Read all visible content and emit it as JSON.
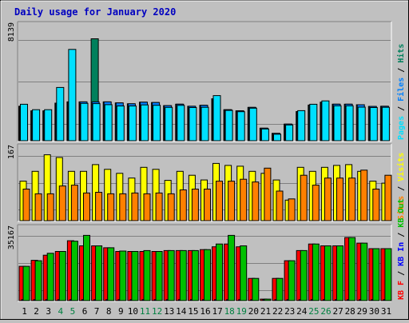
{
  "chart_data": [
    {
      "type": "bar",
      "title": "Daily usage for January 2020",
      "y_max_label": "8139",
      "y_max": 8139,
      "categories": [
        "1",
        "2",
        "3",
        "4",
        "5",
        "6",
        "7",
        "8",
        "9",
        "10",
        "11",
        "12",
        "13",
        "14",
        "15",
        "16",
        "17",
        "18",
        "19",
        "20",
        "21",
        "22",
        "23",
        "24",
        "25",
        "26",
        "27",
        "28",
        "29",
        "30",
        "31"
      ],
      "weekend_days": [
        "4",
        "5",
        "11",
        "12",
        "18",
        "19",
        "25",
        "26"
      ],
      "side_legend": [
        "Hits",
        "Files",
        "Pages"
      ],
      "series": [
        {
          "name": "Hits",
          "color": "#00805c",
          "values": [
            2750,
            2385,
            2385,
            3000,
            3100,
            3100,
            8139,
            3100,
            3020,
            2950,
            3080,
            3050,
            2800,
            2920,
            2750,
            2830,
            3350,
            2480,
            2390,
            2660,
            1000,
            590,
            1330,
            2330,
            2850,
            3080,
            2920,
            2920,
            2870,
            2740,
            2750
          ]
        },
        {
          "name": "Files",
          "color": "#0080ff",
          "values": [
            2750,
            2385,
            2385,
            3000,
            3100,
            3100,
            3100,
            3100,
            3020,
            2950,
            3080,
            3050,
            2800,
            2920,
            2750,
            2830,
            3350,
            2480,
            2390,
            2660,
            1000,
            590,
            1330,
            2330,
            2850,
            3080,
            2920,
            2920,
            2870,
            2740,
            2750
          ]
        },
        {
          "name": "Pages",
          "color": "#00e0ff",
          "values": [
            2910,
            2480,
            2480,
            4250,
            7290,
            2980,
            2960,
            2880,
            2780,
            2780,
            2860,
            2830,
            2660,
            2820,
            2650,
            2670,
            3600,
            2420,
            2320,
            2600,
            940,
            520,
            1260,
            2400,
            2910,
            3180,
            2790,
            2790,
            2680,
            2650,
            2670
          ]
        }
      ]
    },
    {
      "type": "bar",
      "y_max_label": "167",
      "y_max": 167,
      "categories": [
        "1",
        "2",
        "3",
        "4",
        "5",
        "6",
        "7",
        "8",
        "9",
        "10",
        "11",
        "12",
        "13",
        "14",
        "15",
        "16",
        "17",
        "18",
        "19",
        "20",
        "21",
        "22",
        "23",
        "24",
        "25",
        "26",
        "27",
        "28",
        "29",
        "30",
        "31"
      ],
      "side_legend": [
        "Visits",
        "Sites"
      ],
      "series": [
        {
          "name": "Visits",
          "color": "#ffff00",
          "values": [
            100,
            125,
            167,
            160,
            125,
            125,
            142,
            130,
            120,
            108,
            135,
            130,
            102,
            125,
            115,
            103,
            145,
            140,
            138,
            125,
            120,
            103,
            52,
            135,
            125,
            135,
            140,
            142,
            125,
            100,
            95
          ]
        },
        {
          "name": "Sites",
          "color": "#ff8000",
          "values": [
            80,
            68,
            68,
            88,
            90,
            70,
            72,
            68,
            68,
            70,
            68,
            70,
            68,
            78,
            80,
            80,
            100,
            100,
            105,
            98,
            133,
            75,
            55,
            115,
            90,
            108,
            108,
            108,
            128,
            80,
            115
          ]
        }
      ]
    },
    {
      "type": "bar",
      "y_max_label": "35167",
      "y_max": 35167,
      "categories": [
        "1",
        "2",
        "3",
        "4",
        "5",
        "6",
        "7",
        "8",
        "9",
        "10",
        "11",
        "12",
        "13",
        "14",
        "15",
        "16",
        "17",
        "18",
        "19",
        "20",
        "21",
        "22",
        "23",
        "24",
        "25",
        "26",
        "27",
        "28",
        "29",
        "30",
        "31"
      ],
      "side_legend": [
        "KB Out",
        "KB In",
        "KB F"
      ],
      "series": [
        {
          "name": "KB F",
          "color": "#ff0000",
          "values": [
            18500,
            21700,
            24500,
            26500,
            32300,
            29500,
            29500,
            28500,
            26500,
            26500,
            26500,
            26500,
            27000,
            27000,
            27000,
            27500,
            29000,
            30500,
            29000,
            12000,
            800,
            12000,
            21500,
            27000,
            30500,
            29500,
            29500,
            34000,
            31000,
            28000,
            28000
          ]
        },
        {
          "name": "KB In",
          "color": "#0000ff",
          "values": [
            500,
            500,
            500,
            500,
            500,
            500,
            500,
            500,
            500,
            500,
            500,
            500,
            500,
            500,
            500,
            500,
            500,
            500,
            500,
            500,
            500,
            500,
            500,
            500,
            500,
            500,
            500,
            500,
            500,
            500,
            500
          ]
        },
        {
          "name": "KB Out",
          "color": "#00c000",
          "values": [
            18500,
            21500,
            25500,
            26500,
            32000,
            35167,
            29500,
            28500,
            26700,
            26500,
            27000,
            26500,
            27000,
            27000,
            27000,
            27500,
            30500,
            35167,
            29500,
            12000,
            800,
            12000,
            21500,
            27000,
            30500,
            29500,
            29500,
            34000,
            31000,
            28000,
            28000
          ]
        }
      ]
    }
  ]
}
